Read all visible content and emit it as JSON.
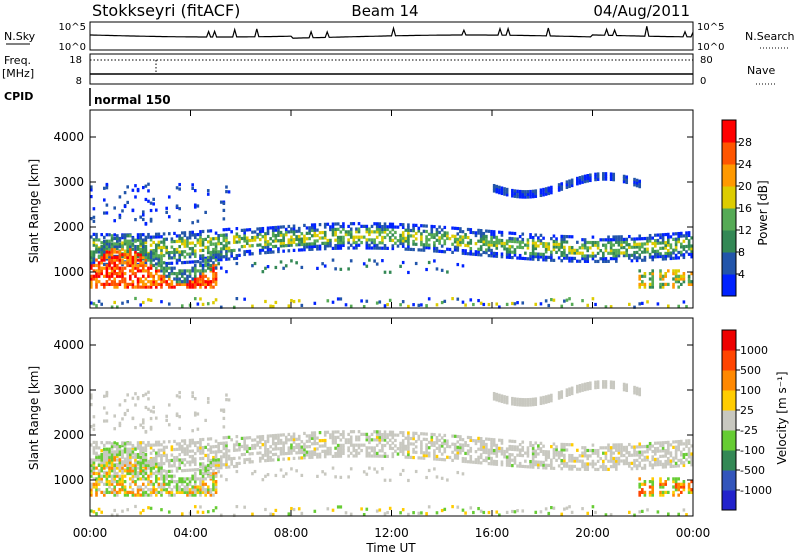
{
  "header": {
    "site": "Stokkseyri (fitACF)",
    "beam": "Beam 14",
    "date": "04/Aug/2011"
  },
  "panels": {
    "nsky": {
      "label": "N.Sky",
      "ticks": [
        "10^5",
        "10^0"
      ],
      "right_label": "N.Search",
      "right_ticks": [
        "10^5",
        "10^0"
      ]
    },
    "freq": {
      "label_line1": "Freq.",
      "label_line2": "[MHz]",
      "ticks": [
        "18",
        "8"
      ],
      "right_label": "Nave",
      "right_ticks": [
        "80",
        "0"
      ]
    },
    "cpid": {
      "label": "CPID",
      "value": "normal 150"
    }
  },
  "chart_data": [
    {
      "type": "heatmap",
      "name": "power",
      "ylabel": "Slant Range [km]",
      "yticks": [
        "1000",
        "2000",
        "3000",
        "4000"
      ],
      "ylim": [
        200,
        4600
      ],
      "colorbar_label": "Power [dB]",
      "colorbar_ticks": [
        "4",
        "8",
        "12",
        "16",
        "20",
        "24",
        "28"
      ],
      "colors": [
        "#0022ff",
        "#2255aa",
        "#338855",
        "#55aa55",
        "#ddcc00",
        "#ff9900",
        "#ff5500",
        "#ff0000"
      ]
    },
    {
      "type": "heatmap",
      "name": "velocity",
      "ylabel": "Slant Range [km]",
      "yticks": [
        "1000",
        "2000",
        "3000",
        "4000"
      ],
      "ylim": [
        200,
        4600
      ],
      "colorbar_label": "Velocity [m s⁻¹]",
      "colorbar_ticks": [
        "1000",
        "500",
        "100",
        "25",
        "-25",
        "-100",
        "-500",
        "-1000"
      ],
      "colors": [
        "#2222cc",
        "#3355bb",
        "#338855",
        "#66cc33",
        "#c8c8c0",
        "#ffcc00",
        "#ff8800",
        "#ff4400",
        "#ee0000"
      ]
    }
  ],
  "xaxis": {
    "label": "Time UT",
    "ticks": [
      "00:00",
      "04:00",
      "08:00",
      "12:00",
      "16:00",
      "20:00",
      "00:00"
    ],
    "range_hours": [
      0,
      24
    ]
  }
}
